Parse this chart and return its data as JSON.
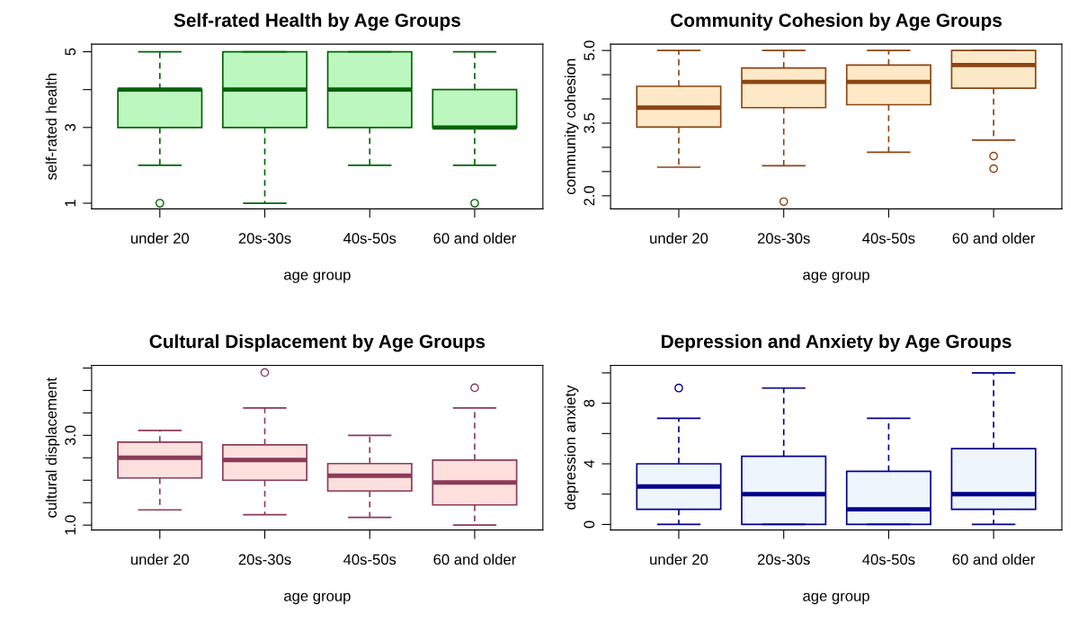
{
  "chart_data": [
    {
      "type": "box",
      "title": "Self-rated Health by Age Groups",
      "xlabel": "age group",
      "ylabel": "self-rated health",
      "categories": [
        "under 20",
        "20s-30s",
        "40s-50s",
        "60 and older"
      ],
      "color": "#006400",
      "colors": [
        "#bdf7c0",
        "#bdf7c0",
        "#bdf7c0",
        "#bdf7c0"
      ],
      "ylim": [
        0.85,
        5.2
      ],
      "yticks": [
        1,
        {
          "value": 2,
          "label": null
        },
        3,
        {
          "value": 4,
          "label": null
        },
        5
      ],
      "grid": false,
      "boxes": [
        {
          "low": 2,
          "q1": 3,
          "median": 4,
          "q3": 4,
          "high": 5,
          "outliers": [
            1
          ]
        },
        {
          "low": 1,
          "q1": 3,
          "median": 4,
          "q3": 5,
          "high": 5
        },
        {
          "low": 2,
          "q1": 3,
          "median": 4,
          "q3": 5,
          "high": 5
        },
        {
          "low": 2,
          "q1": 3,
          "median": 3,
          "q3": 4,
          "high": 5,
          "outliers": [
            1
          ]
        }
      ]
    },
    {
      "type": "box",
      "title": "Community Cohesion by Age Groups",
      "xlabel": "age group",
      "ylabel": "community cohesion",
      "categories": [
        "under 20",
        "20s-30s",
        "40s-50s",
        "60 and older"
      ],
      "color": "#8b4513",
      "colors": [
        "#fde9c8",
        "#fde9c8",
        "#fde9c8",
        "#fde9c8"
      ],
      "ylim": [
        1.73,
        5.13
      ],
      "yticks": [
        {
          "value": 2.0,
          "label": "2.0"
        },
        {
          "value": 2.5,
          "label": null
        },
        {
          "value": 3.0,
          "label": null
        },
        {
          "value": 3.5,
          "label": "3.5"
        },
        {
          "value": 4.0,
          "label": null
        },
        {
          "value": 4.5,
          "label": null
        },
        {
          "value": 5.0,
          "label": "5.0"
        }
      ],
      "grid": false,
      "boxes": [
        {
          "low": 2.59,
          "q1": 3.42,
          "median": 3.82,
          "q3": 4.26,
          "high": 5.0
        },
        {
          "low": 2.62,
          "q1": 3.82,
          "median": 4.35,
          "q3": 4.64,
          "high": 5.0,
          "outliers": [
            1.88
          ]
        },
        {
          "low": 2.9,
          "q1": 3.88,
          "median": 4.35,
          "q3": 4.7,
          "high": 5.0
        },
        {
          "low": 3.15,
          "q1": 4.22,
          "median": 4.7,
          "q3": 5.0,
          "high": 5.0,
          "outliers": [
            2.82,
            2.56
          ]
        }
      ]
    },
    {
      "type": "box",
      "title": "Cultural Displacement by Age Groups",
      "xlabel": "age group",
      "ylabel": "cultural displacement",
      "categories": [
        "under 20",
        "20s-30s",
        "40s-50s",
        "60 and older"
      ],
      "color": "#8b3a5a",
      "colors": [
        "#fde0dd",
        "#fde0dd",
        "#fde0dd",
        "#fde0dd"
      ],
      "ylim": [
        0.89,
        4.56
      ],
      "yticks": [
        {
          "value": 1.0,
          "label": "1.0"
        },
        {
          "value": 1.5,
          "label": null
        },
        {
          "value": 2.0,
          "label": null
        },
        {
          "value": 2.5,
          "label": null
        },
        {
          "value": 3.0,
          "label": "3.0"
        },
        {
          "value": 3.5,
          "label": null
        },
        {
          "value": 4.0,
          "label": null
        },
        {
          "value": 4.5,
          "label": null
        }
      ],
      "grid": false,
      "boxes": [
        {
          "low": 1.34,
          "q1": 2.05,
          "median": 2.5,
          "q3": 2.85,
          "high": 3.11
        },
        {
          "low": 1.23,
          "q1": 2.0,
          "median": 2.45,
          "q3": 2.79,
          "high": 3.61,
          "outliers": [
            4.4
          ]
        },
        {
          "low": 1.17,
          "q1": 1.76,
          "median": 2.1,
          "q3": 2.37,
          "high": 3.0
        },
        {
          "low": 1.0,
          "q1": 1.45,
          "median": 1.95,
          "q3": 2.45,
          "high": 3.61,
          "outliers": [
            4.06
          ]
        }
      ]
    },
    {
      "type": "box",
      "title": "Depression and Anxiety by Age Groups",
      "xlabel": "age group",
      "ylabel": "depression anxiety",
      "categories": [
        "under 20",
        "20s-30s",
        "40s-50s",
        "60 and older"
      ],
      "color": "#00008b",
      "colors": [
        "#eef5fd",
        "#eef5fd",
        "#eef5fd",
        "#eef5fd"
      ],
      "ylim": [
        -0.37,
        10.5
      ],
      "yticks": [
        0,
        {
          "value": 2,
          "label": null
        },
        4,
        {
          "value": 6,
          "label": null
        },
        8,
        {
          "value": 10,
          "label": null
        }
      ],
      "grid": false,
      "boxes": [
        {
          "low": 0,
          "q1": 1,
          "median": 2.5,
          "q3": 4,
          "high": 7,
          "outliers": [
            9
          ]
        },
        {
          "low": 0,
          "q1": 0,
          "median": 2,
          "q3": 4.5,
          "high": 9
        },
        {
          "low": 0,
          "q1": 0,
          "median": 1,
          "q3": 3.5,
          "high": 7
        },
        {
          "low": 0,
          "q1": 1,
          "median": 2,
          "q3": 5,
          "high": 10
        }
      ]
    }
  ]
}
